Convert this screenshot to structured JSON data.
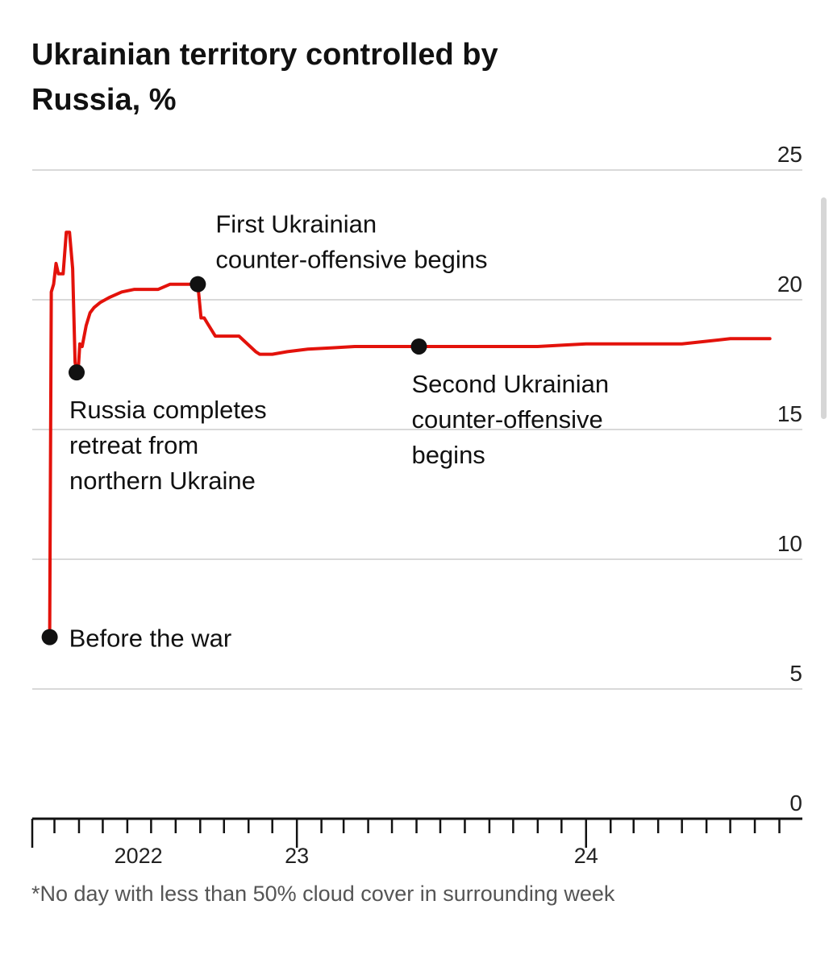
{
  "chart_data": {
    "type": "line",
    "title": "Ukrainian territory controlled by Russia, %",
    "xlabel": "",
    "ylabel": "",
    "xlim": [
      "2022-02-01",
      "2024-09-30"
    ],
    "ylim": [
      0,
      25
    ],
    "y_ticks": [
      "0",
      "5",
      "10",
      "15",
      "20",
      "25"
    ],
    "x_tick_labels": [
      {
        "label": "2022",
        "date": "2022-06-15"
      },
      {
        "label": "23",
        "date": "2023-01-01"
      },
      {
        "label": "24",
        "date": "2024-01-01"
      }
    ],
    "grid": true,
    "line_color": "#e3120b",
    "series": [
      {
        "name": "",
        "x": [
          "2022-02-23",
          "2022-02-25",
          "2022-02-28",
          "2022-03-03",
          "2022-03-06",
          "2022-03-09",
          "2022-03-12",
          "2022-03-16",
          "2022-03-20",
          "2022-03-24",
          "2022-03-27",
          "2022-03-29",
          "2022-03-31",
          "2022-04-02",
          "2022-04-05",
          "2022-04-10",
          "2022-04-15",
          "2022-04-20",
          "2022-04-28",
          "2022-05-10",
          "2022-05-25",
          "2022-06-10",
          "2022-06-25",
          "2022-07-10",
          "2022-07-25",
          "2022-08-10",
          "2022-08-20",
          "2022-08-29",
          "2022-09-02",
          "2022-09-06",
          "2022-09-10",
          "2022-09-20",
          "2022-10-05",
          "2022-10-20",
          "2022-11-10",
          "2022-11-15",
          "2022-12-01",
          "2022-12-20",
          "2023-01-15",
          "2023-02-15",
          "2023-03-15",
          "2023-04-15",
          "2023-05-15",
          "2023-06-04",
          "2023-07-01",
          "2023-08-01",
          "2023-09-01",
          "2023-10-01",
          "2023-11-01",
          "2023-12-01",
          "2024-01-01",
          "2024-02-01",
          "2024-03-01",
          "2024-04-01",
          "2024-05-01",
          "2024-06-01",
          "2024-07-01",
          "2024-08-01",
          "2024-08-20"
        ],
        "values": [
          7.0,
          20.3,
          20.6,
          21.4,
          21.0,
          21.0,
          21.0,
          22.6,
          22.6,
          21.2,
          17.6,
          17.2,
          17.3,
          18.3,
          18.2,
          19.0,
          19.5,
          19.7,
          19.9,
          20.1,
          20.3,
          20.4,
          20.4,
          20.4,
          20.6,
          20.6,
          20.6,
          20.6,
          19.3,
          19.3,
          19.1,
          18.6,
          18.6,
          18.6,
          18.0,
          17.9,
          17.9,
          18.0,
          18.1,
          18.15,
          18.2,
          18.2,
          18.2,
          18.2,
          18.2,
          18.2,
          18.2,
          18.2,
          18.2,
          18.25,
          18.3,
          18.3,
          18.3,
          18.3,
          18.3,
          18.4,
          18.5,
          18.5,
          18.5
        ]
      }
    ],
    "annotations": [
      {
        "date": "2022-02-23",
        "value": 7.0,
        "lines": [
          "Before the war"
        ],
        "placement": "right"
      },
      {
        "date": "2022-03-29",
        "value": 17.2,
        "lines": [
          "Russia completes",
          "retreat from",
          "northern Ukraine"
        ],
        "placement": "below"
      },
      {
        "date": "2022-08-29",
        "value": 20.6,
        "lines": [
          "First Ukrainian",
          "counter-offensive begins"
        ],
        "placement": "above-right"
      },
      {
        "date": "2023-06-04",
        "value": 18.2,
        "lines": [
          "Second Ukrainian",
          "counter-offensive",
          "begins"
        ],
        "placement": "below"
      }
    ]
  },
  "footnote": "*No day with less than 50% cloud cover in surrounding week"
}
